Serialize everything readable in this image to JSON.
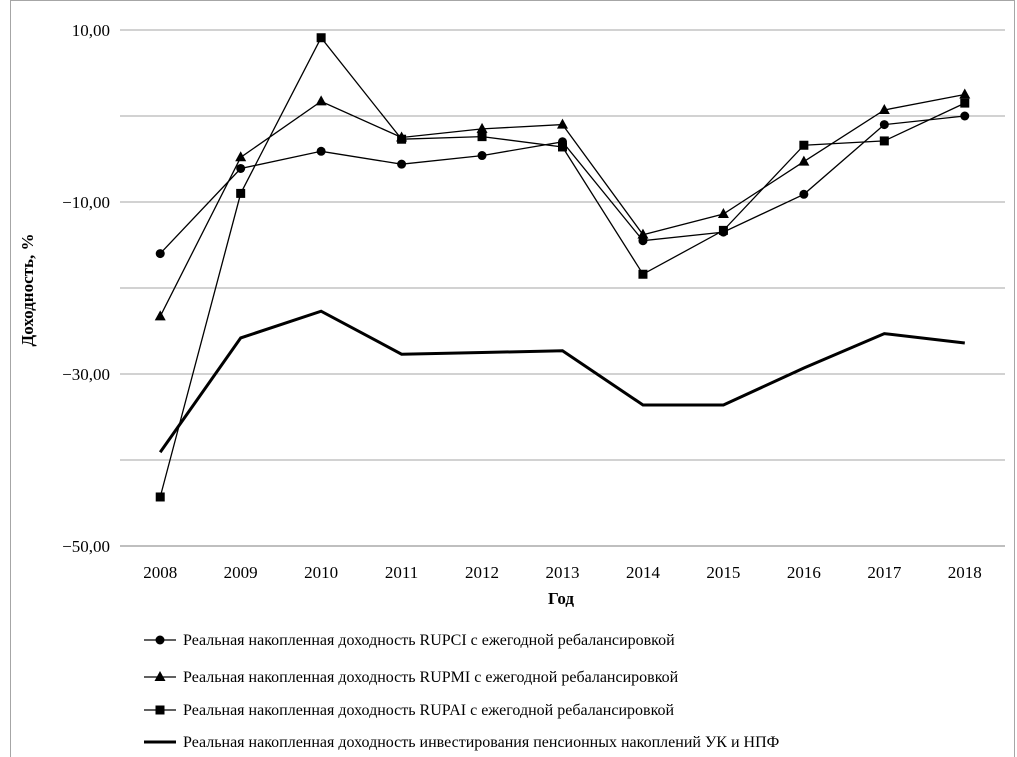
{
  "chart_data": {
    "type": "line",
    "x": [
      "2008",
      "2009",
      "2010",
      "2011",
      "2012",
      "2013",
      "2014",
      "2015",
      "2016",
      "2017",
      "2018"
    ],
    "xlabel": "Год",
    "ylabel": "Доходность, %",
    "ylim": [
      -50,
      10
    ],
    "yticks": [
      10,
      -10,
      -30,
      -50
    ],
    "ytick_labels": [
      "10,00",
      "−10,00",
      "−30,00",
      "−50,00"
    ],
    "grid": "horizontal",
    "legend_position": "bottom",
    "series": [
      {
        "name": "Реальная накопленная доходность RUPCI с ежегодной ребалансировкой",
        "marker": "circle",
        "color": "#000000",
        "values": [
          -16.0,
          -6.1,
          -4.1,
          -5.6,
          -4.6,
          -3.0,
          -14.5,
          -13.5,
          -9.1,
          -1.0,
          0.0
        ]
      },
      {
        "name": "Реальная накопленная доходность RUPMI с ежегодной ребалансировкой",
        "marker": "triangle",
        "color": "#000000",
        "values": [
          -23.3,
          -4.8,
          1.7,
          -2.5,
          -1.5,
          -1.0,
          -13.8,
          -11.4,
          -5.3,
          0.7,
          2.5
        ]
      },
      {
        "name": "Реальная накопленная доходность RUPAI с ежегодной ребалансировкой",
        "marker": "square",
        "color": "#000000",
        "values": [
          -44.3,
          -9.0,
          9.1,
          -2.7,
          -2.4,
          -3.6,
          -18.4,
          -13.3,
          -3.4,
          -2.9,
          1.5
        ]
      },
      {
        "name": "Реальная накопленная доходность инвестирования пенсионных накоплений УК и НПФ",
        "marker": "none",
        "color": "#000000",
        "values": [
          -39.1,
          -25.8,
          -22.7,
          -27.7,
          -27.5,
          -27.3,
          -33.6,
          -33.6,
          -29.3,
          -25.3,
          -26.4
        ]
      }
    ]
  }
}
